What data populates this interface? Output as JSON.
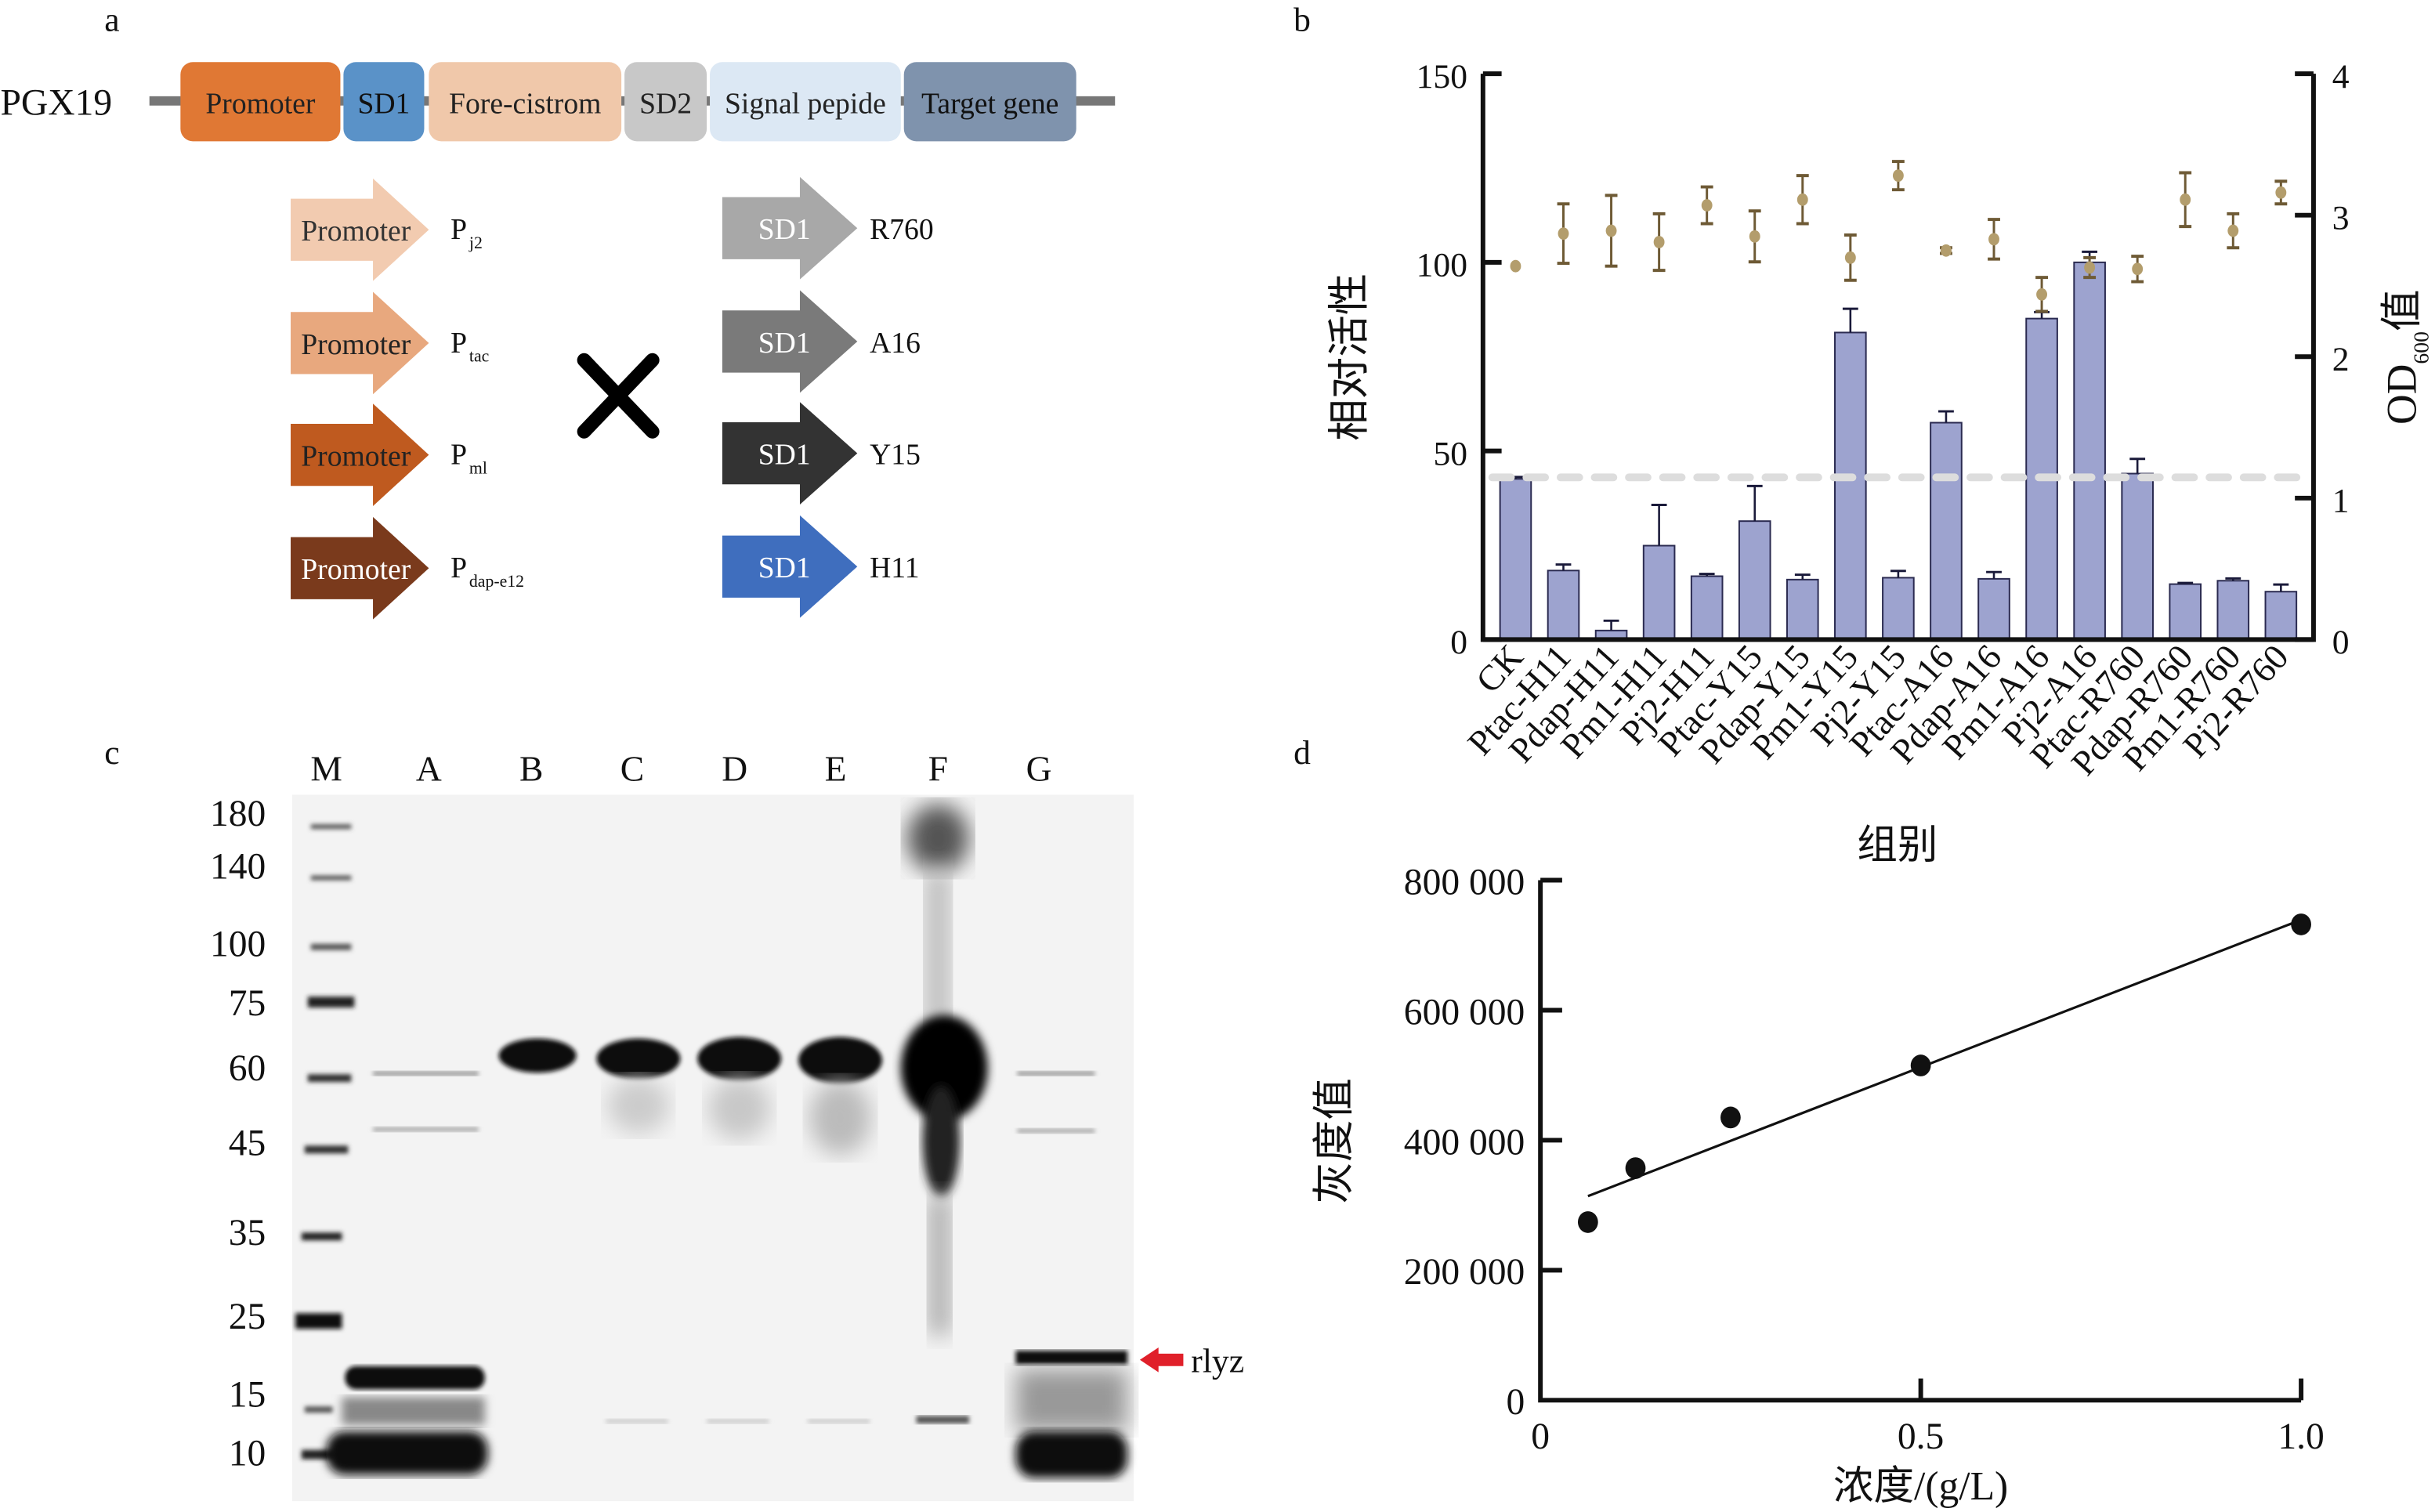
{
  "panels": {
    "a": "a",
    "b": "b",
    "c": "c",
    "d": "d"
  },
  "panel_a": {
    "plasmid": "PGX19",
    "segments": [
      {
        "label": "Promoter",
        "color": "#E07834",
        "text_color": "#222"
      },
      {
        "label": "SD1",
        "color": "#5A92C8",
        "text_color": "#111"
      },
      {
        "label": "Fore-cistrom",
        "color": "#F0C8AA",
        "text_color": "#222"
      },
      {
        "label": "SD2",
        "color": "#C8C8C8",
        "text_color": "#222"
      },
      {
        "label": "Signal pepide",
        "color": "#DCE8F4",
        "text_color": "#222"
      },
      {
        "label": "Target gene",
        "color": "#7F93AD",
        "text_color": "#111"
      }
    ],
    "promoters": [
      {
        "label": "Promoter",
        "name": "P",
        "sub": "j2",
        "color": "#F2CBB0",
        "text_color": "#333"
      },
      {
        "label": "Promoter",
        "name": "P",
        "sub": "tac",
        "color": "#E8A87E",
        "text_color": "#222"
      },
      {
        "label": "Promoter",
        "name": "P",
        "sub": "ml",
        "color": "#BF5A1F",
        "text_color": "#222"
      },
      {
        "label": "Promoter",
        "name": "P",
        "sub": "dap-e12",
        "color": "#7A3A1C",
        "text_color": "#fff"
      }
    ],
    "cross_symbol": "×",
    "rbs": [
      {
        "label": "SD1",
        "name": "R760",
        "color": "#A8A8A8"
      },
      {
        "label": "SD1",
        "name": "A16",
        "color": "#7A7A7A"
      },
      {
        "label": "SD1",
        "name": "Y15",
        "color": "#333333"
      },
      {
        "label": "SD1",
        "name": "H11",
        "color": "#3F6EBE"
      }
    ]
  },
  "panel_c": {
    "lanes": [
      "M",
      "A",
      "B",
      "C",
      "D",
      "E",
      "F",
      "G"
    ],
    "markers": [
      "180",
      "140",
      "100",
      "75",
      "60",
      "45",
      "35",
      "25",
      "15",
      "10"
    ],
    "annotation": "rlyz",
    "annotation_color": "#E0202A"
  },
  "chart_data": [
    {
      "type": "bar",
      "title": "",
      "xlabel": "组别",
      "ylabel": "相对活性",
      "y2label_main": "OD",
      "y2label_sub": "600",
      "y2label_tail": "值",
      "ylim": [
        0,
        150
      ],
      "y2lim": [
        0,
        4
      ],
      "yticks": [
        "0",
        "50",
        "100",
        "150"
      ],
      "y2ticks": [
        "0",
        "1",
        "2",
        "3",
        "4"
      ],
      "categories": [
        "CK",
        "Ptac-H11",
        "Pdap-H11",
        "Pm1-H11",
        "Pj2-H11",
        "Ptac-Y15",
        "Pdap-Y15",
        "Pm1-Y15",
        "Pj2-Y15",
        "Ptac-A16",
        "Pdap-A16",
        "Pm1-A16",
        "Pj2-A16",
        "Ptac-R760",
        "Pdap-R760",
        "Pm1-R760",
        "Pj2-R760"
      ],
      "series": [
        {
          "name": "相对活性",
          "axis": "left",
          "kind": "bar",
          "color": "#9DA3CF",
          "values": [
            42.6,
            18.3,
            2.4,
            24.9,
            16.8,
            31.4,
            15.9,
            81.4,
            16.4,
            57.5,
            16.1,
            85.1,
            100,
            44.0,
            14.7,
            15.6,
            12.7
          ],
          "errors": [
            0.5,
            1.6,
            2.6,
            10.8,
            0.6,
            9.3,
            1.3,
            6.3,
            1.8,
            3.0,
            1.8,
            1.7,
            2.8,
            3.9,
            0.3,
            0.6,
            1.9
          ]
        },
        {
          "name": "OD600值",
          "axis": "right",
          "kind": "point",
          "color": "#B39D6C",
          "error_color": "#6E5A35",
          "values": [
            2.64,
            2.87,
            2.89,
            2.81,
            3.07,
            2.85,
            3.11,
            2.7,
            3.28,
            2.75,
            2.83,
            2.44,
            2.63,
            2.62,
            3.11,
            2.89,
            3.16
          ],
          "errors": [
            0,
            0.21,
            0.25,
            0.2,
            0.13,
            0.18,
            0.17,
            0.16,
            0.1,
            0.02,
            0.14,
            0.12,
            0.07,
            0.09,
            0.19,
            0.12,
            0.08
          ]
        }
      ],
      "reference_line": {
        "value": 43,
        "style": "dashed",
        "color": "#DDDDDD"
      }
    },
    {
      "type": "scatter",
      "title": "",
      "xlabel": "浓度/(g/L)",
      "ylabel": "灰度值",
      "xlim": [
        0,
        1.0
      ],
      "ylim": [
        0,
        800000
      ],
      "xticks": [
        "0",
        "0.5",
        "1.0"
      ],
      "yticks": [
        "0",
        "200 000",
        "400 000",
        "600 000",
        "800 000"
      ],
      "points": [
        {
          "x": 0.0625,
          "y": 274000
        },
        {
          "x": 0.125,
          "y": 357000
        },
        {
          "x": 0.25,
          "y": 435000
        },
        {
          "x": 0.5,
          "y": 515000
        },
        {
          "x": 1.0,
          "y": 732000
        }
      ],
      "fit_line": {
        "x": [
          0.0625,
          1.0
        ],
        "y": [
          314000,
          739000
        ]
      }
    }
  ]
}
